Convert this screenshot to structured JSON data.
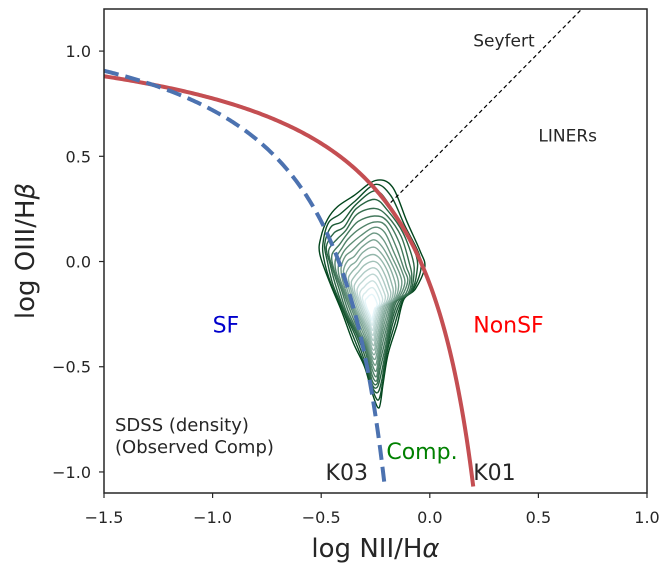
{
  "chart_data": {
    "type": "line",
    "title": "",
    "xlabel": "log NII/H",
    "xlabel_symbol": "α",
    "ylabel": "log OIII/H",
    "ylabel_symbol": "β",
    "xlim": [
      -1.5,
      1.0
    ],
    "ylim": [
      -1.1,
      1.2
    ],
    "xticks": [
      -1.5,
      -1.0,
      -0.5,
      0.0,
      0.5,
      1.0
    ],
    "xtick_labels": [
      "−1.5",
      "−1.0",
      "−0.5",
      "0.0",
      "0.5",
      "1.0"
    ],
    "yticks": [
      -1.0,
      -0.5,
      0.0,
      0.5,
      1.0
    ],
    "ytick_labels": [
      "−1.0",
      "−0.5",
      "0.0",
      "0.5",
      "1.0"
    ],
    "grid": false,
    "series": [
      {
        "name": "K01",
        "style": "solid",
        "color": "#c44e52",
        "equation": "0.61/(x-0.47)+1.19",
        "x_range": [
          -1.5,
          0.2
        ]
      },
      {
        "name": "K03",
        "style": "dashed",
        "color": "#4c72b0",
        "equation": "0.61/(x-0.05)+1.3",
        "x_range": [
          -1.5,
          -0.21
        ]
      },
      {
        "name": "Seyfert/LINER",
        "style": "dotted-thin",
        "color": "#000000",
        "x": [
          -0.18,
          0.7
        ],
        "y": [
          0.28,
          1.2
        ]
      }
    ],
    "density_contours": {
      "name": "SDSS (density)",
      "color_outer": "#00441b",
      "color_inner": "#e5f5f9",
      "levels": 18,
      "center": [
        -0.27,
        -0.15
      ],
      "x_extent": [
        -0.51,
        -0.03
      ],
      "y_extent": [
        -0.68,
        0.39
      ]
    },
    "annotations": [
      {
        "text": "Seyfert",
        "x": 0.2,
        "y": 1.05,
        "color": "#262626"
      },
      {
        "text": "LINERs",
        "x": 0.5,
        "y": 0.6,
        "color": "#262626"
      },
      {
        "text": "SF",
        "x": -1.0,
        "y": -0.3,
        "color": "#0000cc"
      },
      {
        "text": "NonSF",
        "x": 0.2,
        "y": -0.3,
        "color": "#ff0000"
      },
      {
        "text": "Comp.",
        "x": -0.2,
        "y": -0.9,
        "color": "#008000"
      },
      {
        "text": "K03",
        "x": -0.48,
        "y": -1.0,
        "color": "#262626"
      },
      {
        "text": "K01",
        "x": 0.2,
        "y": -1.0,
        "color": "#262626"
      }
    ],
    "legend_text": [
      "SDSS (density)",
      "(Observed Comp)"
    ],
    "legend_position": "bottom-left"
  }
}
